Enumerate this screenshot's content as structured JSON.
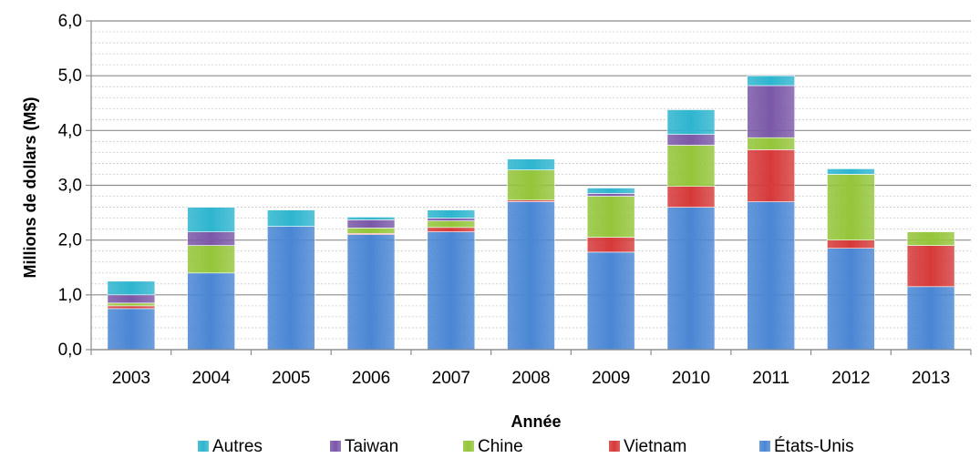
{
  "chart_data": {
    "type": "bar",
    "stacked": true,
    "title": "",
    "xlabel": "Année",
    "ylabel": "Millions de dollars (M$)",
    "ylim": [
      0,
      6
    ],
    "yticks": [
      "0,0",
      "1,0",
      "2,0",
      "3,0",
      "4,0",
      "5,0",
      "6,0"
    ],
    "grid": "horizontal major and minor",
    "legend_position": "bottom",
    "categories": [
      "2003",
      "2004",
      "2005",
      "2006",
      "2007",
      "2008",
      "2009",
      "2010",
      "2011",
      "2012",
      "2013"
    ],
    "series": [
      {
        "name": "États-Unis",
        "color": "#4a86d4",
        "values": [
          0.75,
          1.4,
          2.25,
          2.1,
          2.15,
          2.7,
          1.78,
          2.6,
          2.7,
          1.85,
          1.15
        ]
      },
      {
        "name": "Vietnam",
        "color": "#d63a3a",
        "values": [
          0.05,
          0.0,
          0.0,
          0.02,
          0.08,
          0.03,
          0.27,
          0.38,
          0.95,
          0.15,
          0.75
        ]
      },
      {
        "name": "Chine",
        "color": "#94c53a",
        "values": [
          0.05,
          0.5,
          0.0,
          0.1,
          0.12,
          0.55,
          0.75,
          0.75,
          0.22,
          1.2,
          0.25
        ]
      },
      {
        "name": "Taiwan",
        "color": "#7b58a8",
        "values": [
          0.15,
          0.25,
          0.0,
          0.15,
          0.05,
          0.0,
          0.05,
          0.2,
          0.95,
          0.0,
          0.0
        ]
      },
      {
        "name": "Autres",
        "color": "#2eb5cf",
        "values": [
          0.25,
          0.45,
          0.3,
          0.05,
          0.15,
          0.2,
          0.1,
          0.45,
          0.18,
          0.1,
          0.0
        ]
      }
    ],
    "legend_order": [
      "Autres",
      "Taiwan",
      "Chine",
      "Vietnam",
      "États-Unis"
    ]
  }
}
